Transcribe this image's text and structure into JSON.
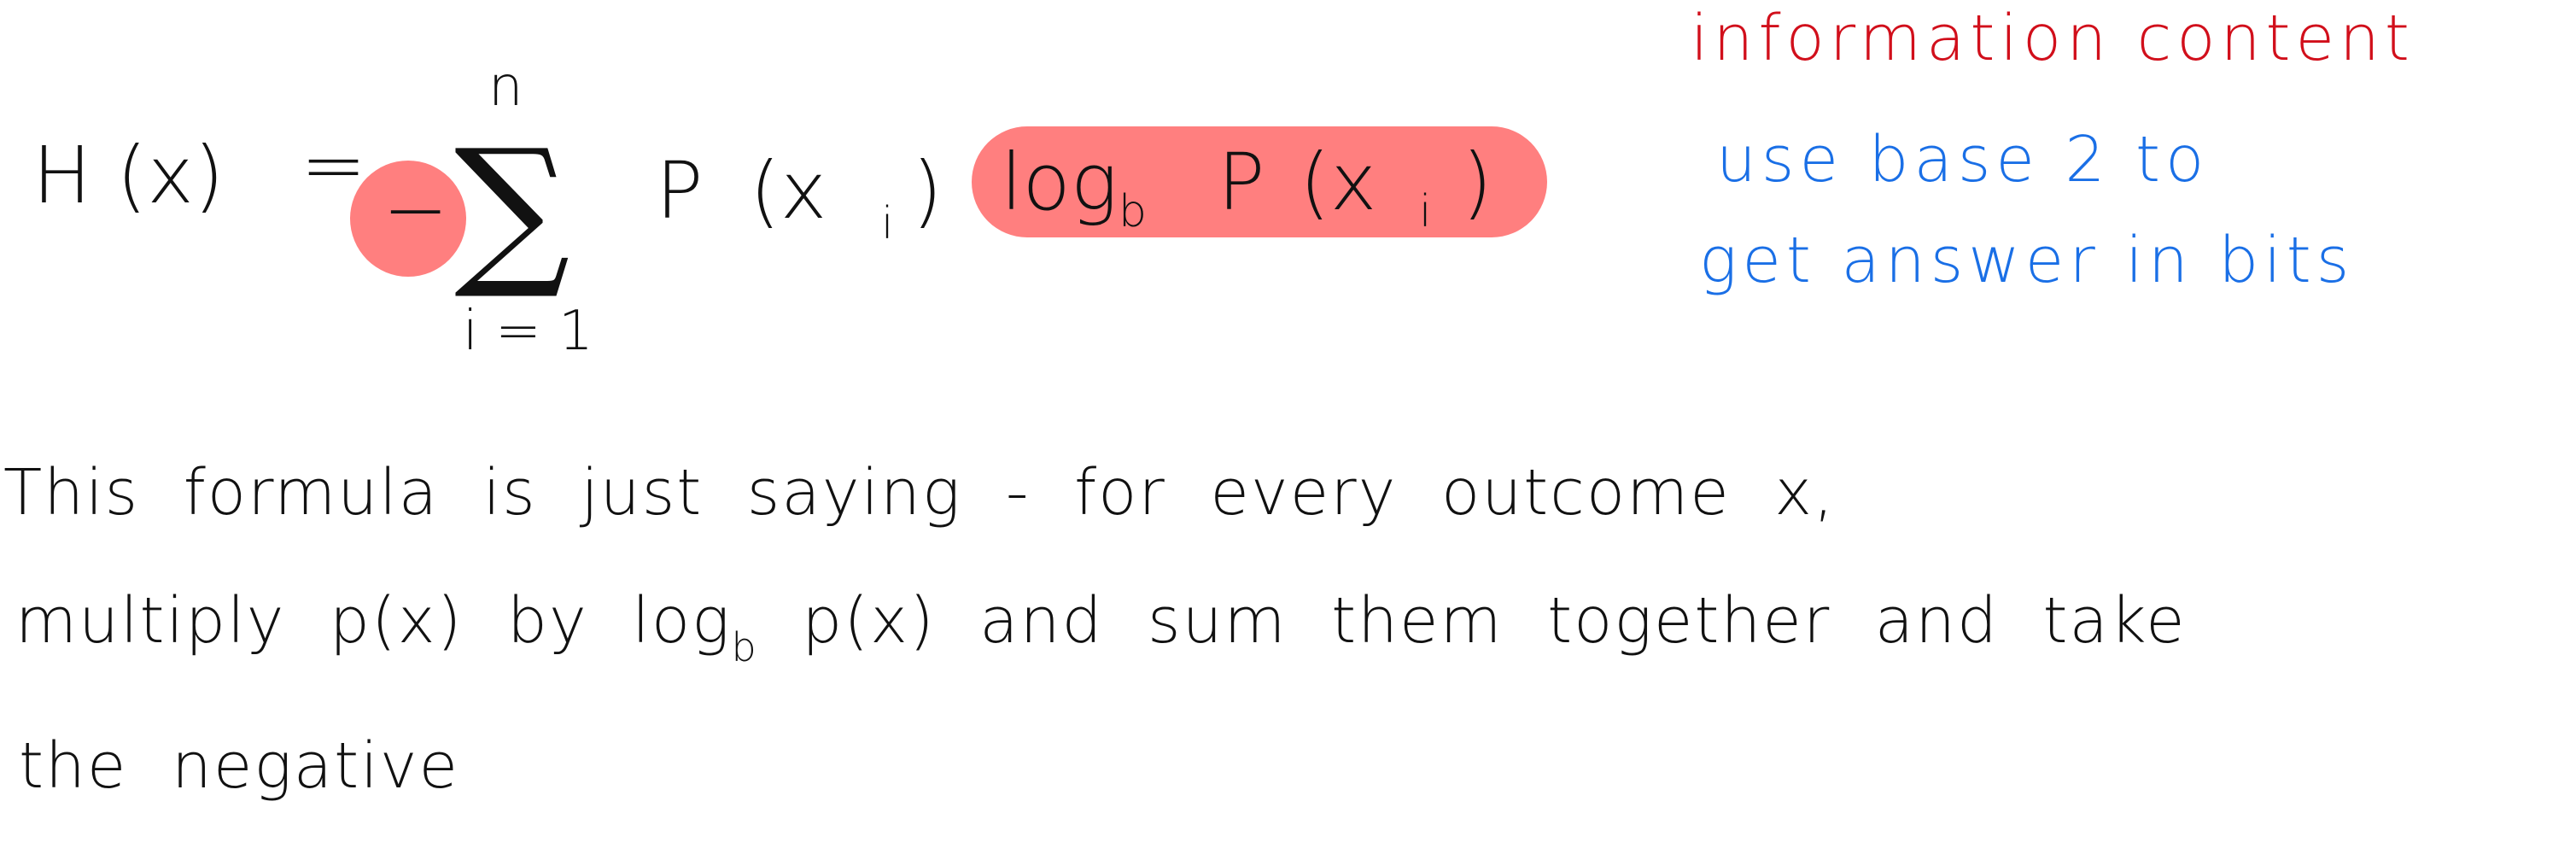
{
  "colors": {
    "ink": "#111111",
    "highlight": "#ff7f7f",
    "note_red": "#d10f1b",
    "note_blue": "#1a6fe6",
    "background": "#ffffff"
  },
  "formula": {
    "lhs": "H (x)",
    "equals": "=",
    "minus": "−",
    "sigma": "∑",
    "upper_limit": "n",
    "lower_limit": "i = 1",
    "p_term": "P",
    "p_arg": "(x",
    "p_arg_sub": "i",
    "p_arg_close": ")",
    "log": "log",
    "log_base": "b",
    "log_p": "P",
    "log_arg": "(x",
    "log_arg_sub": "i",
    "log_arg_close": ")"
  },
  "notes": {
    "information_content": "information content",
    "base_line1": "use base 2 to",
    "base_line2": "get answer in bits"
  },
  "explanation": {
    "line1": "This formula is just saying - for every outcome x,",
    "line2_part1": "multiply p(x) by log",
    "line2_sub": "b",
    "line2_part2": "p(x) and sum them together and take",
    "line3": "the negative"
  }
}
